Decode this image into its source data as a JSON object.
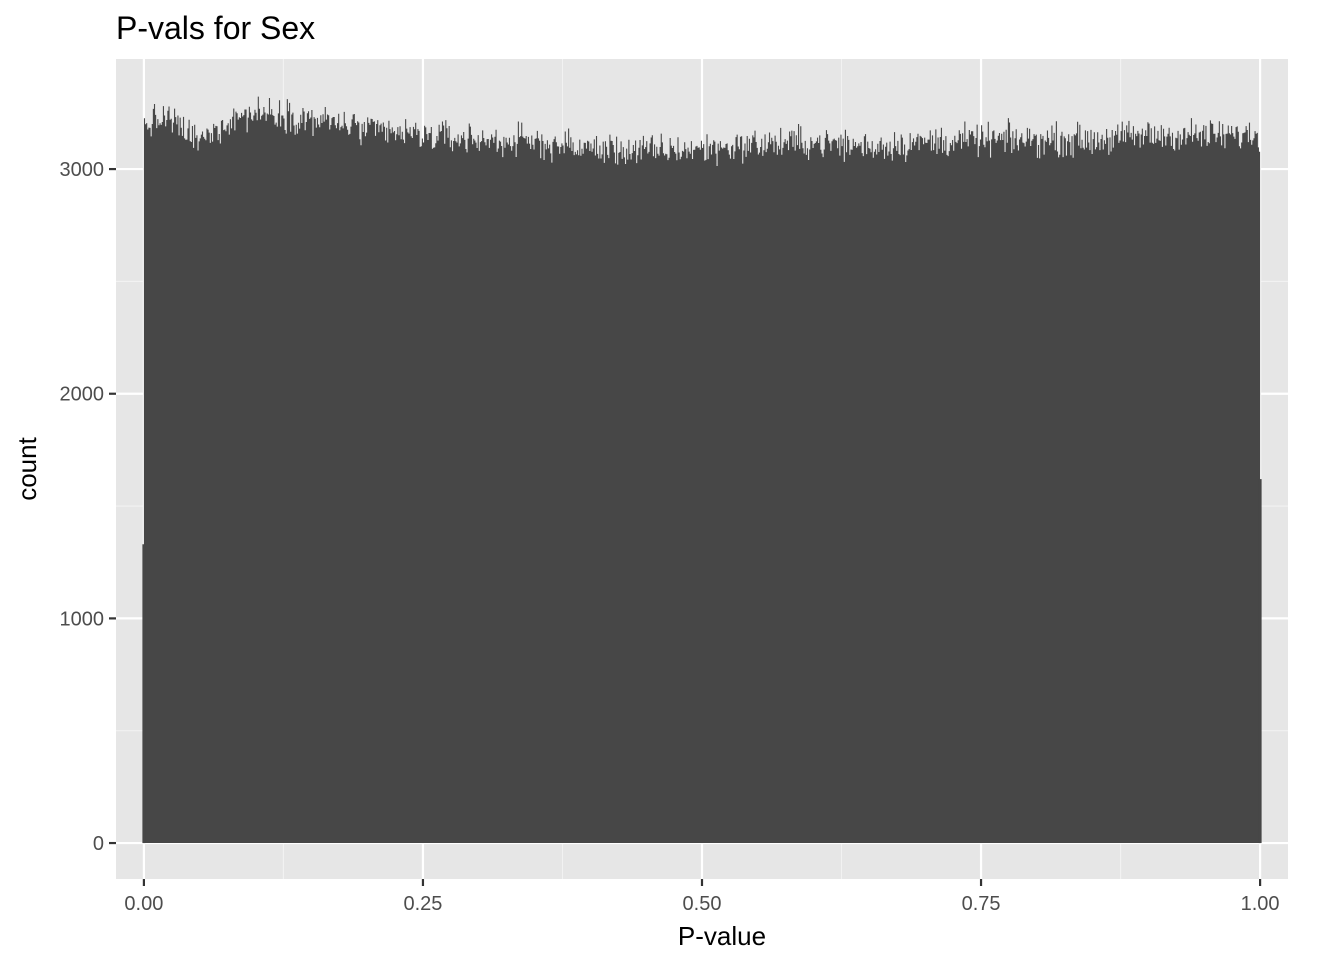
{
  "chart_data": {
    "type": "bar",
    "title": "P-vals for Sex",
    "xlabel": "P-value",
    "ylabel": "count",
    "xlim": [
      -0.025,
      1.025
    ],
    "ylim": [
      -160,
      3490
    ],
    "x_ticks": [
      0.0,
      0.25,
      0.5,
      0.75,
      1.0
    ],
    "x_tick_labels": [
      "0.00",
      "0.25",
      "0.50",
      "0.75",
      "1.00"
    ],
    "y_ticks": [
      0,
      1000,
      2000,
      3000
    ],
    "y_tick_labels": [
      "0",
      "1000",
      "2000",
      "3000"
    ],
    "bin_range": [
      0,
      1
    ],
    "bin_width": 0.001,
    "grid": true,
    "legend": "none",
    "edge_bins": [
      {
        "x": 0.0,
        "count": 1330
      },
      {
        "x": 1.0,
        "count": 1620
      }
    ],
    "profile_x": [
      0.0,
      0.02,
      0.05,
      0.08,
      0.1,
      0.12,
      0.15,
      0.18,
      0.2,
      0.25,
      0.3,
      0.35,
      0.4,
      0.45,
      0.5,
      0.55,
      0.6,
      0.65,
      0.7,
      0.75,
      0.8,
      0.85,
      0.9,
      0.95,
      1.0
    ],
    "profile_count": [
      3190,
      3230,
      3120,
      3230,
      3250,
      3250,
      3220,
      3200,
      3170,
      3150,
      3130,
      3120,
      3090,
      3080,
      3090,
      3110,
      3120,
      3100,
      3120,
      3130,
      3130,
      3130,
      3150,
      3150,
      3150
    ],
    "noise_amplitude": 70,
    "colors": {
      "bar": "#474747",
      "panel_background": "#e6e6e6",
      "grid_major": "#ffffff",
      "grid_minor": "#f2f2f2",
      "tick_mark": "#333333",
      "tick_text": "#4d4d4d"
    }
  }
}
